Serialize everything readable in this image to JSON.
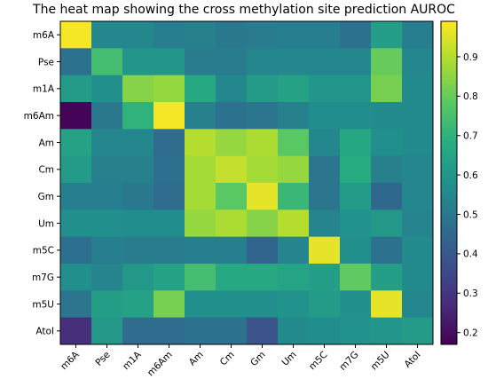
{
  "chart_data": {
    "type": "heatmap",
    "title": "The heat map showing the cross methylation site prediction AUROC",
    "xlabel": "",
    "ylabel": "",
    "row_labels": [
      "m6A",
      "Pse",
      "m1A",
      "m6Am",
      "Am",
      "Cm",
      "Gm",
      "Um",
      "m5C",
      "m7G",
      "m5U",
      "AtoI"
    ],
    "col_labels": [
      "m6A",
      "Pse",
      "m1A",
      "m6Am",
      "Am",
      "Cm",
      "Gm",
      "Um",
      "m5C",
      "m7G",
      "m5U",
      "AtoI"
    ],
    "values": [
      [
        0.98,
        0.55,
        0.55,
        0.52,
        0.53,
        0.5,
        0.51,
        0.52,
        0.52,
        0.48,
        0.63,
        0.52
      ],
      [
        0.48,
        0.74,
        0.6,
        0.6,
        0.51,
        0.51,
        0.55,
        0.55,
        0.55,
        0.55,
        0.8,
        0.55
      ],
      [
        0.62,
        0.58,
        0.84,
        0.86,
        0.67,
        0.55,
        0.62,
        0.64,
        0.6,
        0.6,
        0.82,
        0.56
      ],
      [
        0.18,
        0.5,
        0.7,
        0.98,
        0.53,
        0.48,
        0.49,
        0.53,
        0.57,
        0.57,
        0.56,
        0.56
      ],
      [
        0.64,
        0.55,
        0.55,
        0.46,
        0.9,
        0.86,
        0.89,
        0.78,
        0.55,
        0.66,
        0.58,
        0.56
      ],
      [
        0.62,
        0.53,
        0.53,
        0.47,
        0.88,
        0.92,
        0.88,
        0.86,
        0.49,
        0.68,
        0.53,
        0.55
      ],
      [
        0.52,
        0.52,
        0.5,
        0.46,
        0.88,
        0.78,
        0.96,
        0.72,
        0.49,
        0.62,
        0.45,
        0.55
      ],
      [
        0.58,
        0.58,
        0.57,
        0.57,
        0.86,
        0.89,
        0.84,
        0.9,
        0.54,
        0.59,
        0.61,
        0.54
      ],
      [
        0.47,
        0.52,
        0.51,
        0.51,
        0.52,
        0.52,
        0.44,
        0.54,
        0.96,
        0.58,
        0.48,
        0.56
      ],
      [
        0.58,
        0.54,
        0.61,
        0.64,
        0.74,
        0.67,
        0.67,
        0.65,
        0.63,
        0.79,
        0.63,
        0.56
      ],
      [
        0.49,
        0.63,
        0.64,
        0.82,
        0.58,
        0.58,
        0.58,
        0.59,
        0.62,
        0.58,
        0.96,
        0.55
      ],
      [
        0.28,
        0.61,
        0.46,
        0.46,
        0.48,
        0.48,
        0.38,
        0.56,
        0.57,
        0.59,
        0.6,
        0.62
      ]
    ],
    "colorscale": "viridis",
    "vmin": 0.17,
    "vmax": 0.99,
    "colorbar_ticks": [
      0.2,
      0.3,
      0.4,
      0.5,
      0.6,
      0.7,
      0.8,
      0.9
    ],
    "colorbar_tick_labels": [
      "0.2",
      "0.3",
      "0.4",
      "0.5",
      "0.6",
      "0.7",
      "0.8",
      "0.9"
    ],
    "grid": false,
    "legend": "colorbar-right"
  }
}
